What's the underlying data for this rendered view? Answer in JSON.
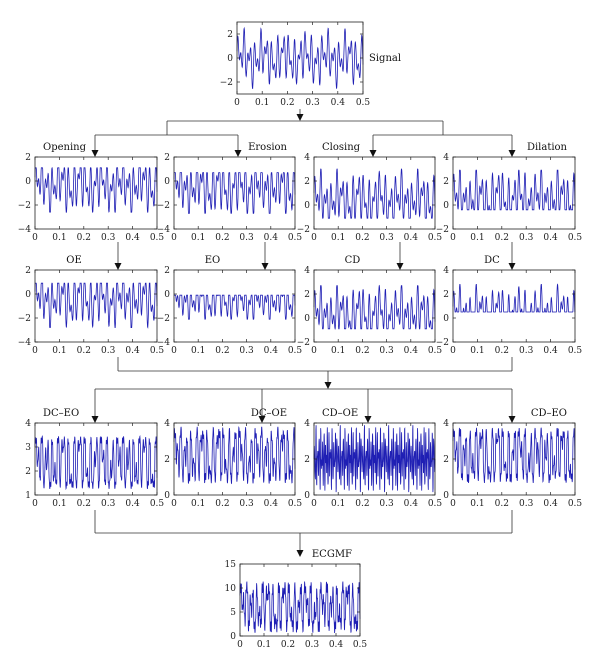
{
  "chart_data": [
    {
      "id": "signal",
      "type": "line",
      "title": "Signal",
      "ylim": [
        -3,
        3
      ],
      "xlim": [
        0,
        0.5
      ],
      "yticks": [
        "2",
        "0",
        "−2"
      ],
      "xticks": [
        "0",
        "0.1",
        "0.2",
        "0.3",
        "0.4",
        "0.5"
      ]
    },
    {
      "id": "opening",
      "type": "line",
      "title": "Opening",
      "ylim": [
        -4,
        2
      ],
      "xlim": [
        0,
        0.5
      ],
      "yticks": [
        "2",
        "0",
        "−2",
        "−4"
      ],
      "xticks": [
        "0",
        "0.1",
        "0.2",
        "0.3",
        "0.4",
        "0.5"
      ]
    },
    {
      "id": "erosion",
      "type": "line",
      "title": "Erosion",
      "ylim": [
        -4,
        2
      ],
      "xlim": [
        0,
        0.5
      ],
      "yticks": [
        "2",
        "0",
        "−2",
        "−4"
      ],
      "xticks": [
        "0",
        "0.1",
        "0.2",
        "0.3",
        "0.4",
        "0.5"
      ]
    },
    {
      "id": "closing",
      "type": "line",
      "title": "Closing",
      "ylim": [
        -2,
        4
      ],
      "xlim": [
        0,
        0.5
      ],
      "yticks": [
        "4",
        "2",
        "0",
        "−2"
      ],
      "xticks": [
        "0",
        "0.1",
        "0.2",
        "0.3",
        "0.4",
        "0.5"
      ]
    },
    {
      "id": "dilation",
      "type": "line",
      "title": "Dilation",
      "ylim": [
        -2,
        4
      ],
      "xlim": [
        0,
        0.5
      ],
      "yticks": [
        "4",
        "2",
        "0",
        "−2"
      ],
      "xticks": [
        "0",
        "0.1",
        "0.2",
        "0.3",
        "0.4",
        "0.5"
      ]
    },
    {
      "id": "oe",
      "type": "line",
      "title": "OE",
      "ylim": [
        -4,
        2
      ],
      "xlim": [
        0,
        0.5
      ],
      "yticks": [
        "2",
        "0",
        "−2",
        "−4"
      ],
      "xticks": [
        "0",
        "0.1",
        "0.2",
        "0.3",
        "0.4",
        "0.5"
      ]
    },
    {
      "id": "eo",
      "type": "line",
      "title": "EO",
      "ylim": [
        -4,
        2
      ],
      "xlim": [
        0,
        0.5
      ],
      "yticks": [
        "2",
        "0",
        "−2",
        "−4"
      ],
      "xticks": [
        "0",
        "0.1",
        "0.2",
        "0.3",
        "0.4",
        "0.5"
      ]
    },
    {
      "id": "cd",
      "type": "line",
      "title": "CD",
      "ylim": [
        -2,
        4
      ],
      "xlim": [
        0,
        0.5
      ],
      "yticks": [
        "4",
        "2",
        "0",
        "−2"
      ],
      "xticks": [
        "0",
        "0.1",
        "0.2",
        "0.3",
        "0.4",
        "0.5"
      ]
    },
    {
      "id": "dc",
      "type": "line",
      "title": "DC",
      "ylim": [
        -2,
        4
      ],
      "xlim": [
        0,
        0.5
      ],
      "yticks": [
        "4",
        "2",
        "0",
        "−2"
      ],
      "xticks": [
        "0",
        "0.1",
        "0.2",
        "0.3",
        "0.4",
        "0.5"
      ]
    },
    {
      "id": "dc_eo",
      "type": "line",
      "title": "DC–EO",
      "ylim": [
        1,
        4
      ],
      "xlim": [
        0,
        0.5
      ],
      "yticks": [
        "4",
        "3",
        "2",
        "1"
      ],
      "xticks": [
        "0",
        "0.1",
        "0.2",
        "0.3",
        "0.4",
        "0.5"
      ]
    },
    {
      "id": "dc_oe",
      "type": "line",
      "title": "DC–OE",
      "ylim": [
        0,
        4
      ],
      "xlim": [
        0,
        0.5
      ],
      "yticks": [
        "4",
        "2",
        "0"
      ],
      "xticks": [
        "0",
        "0.1",
        "0.2",
        "0.3",
        "0.4",
        "0.5"
      ]
    },
    {
      "id": "cd_oe",
      "type": "line",
      "title": "CD–OE",
      "ylim": [
        0,
        4
      ],
      "xlim": [
        0,
        0.5
      ],
      "yticks": [
        "4",
        "2",
        "0"
      ],
      "xticks": [
        "0",
        "0.1",
        "0.2",
        "0.3",
        "0.4",
        "0.5"
      ]
    },
    {
      "id": "cd_eo",
      "type": "line",
      "title": "CD–EO",
      "ylim": [
        0,
        4
      ],
      "xlim": [
        0,
        0.5
      ],
      "yticks": [
        "4",
        "2",
        "0"
      ],
      "xticks": [
        "0",
        "0.1",
        "0.2",
        "0.3",
        "0.4",
        "0.5"
      ]
    },
    {
      "id": "ecgmf",
      "type": "line",
      "title": "ECGMF",
      "ylim": [
        0,
        15
      ],
      "xlim": [
        0,
        0.5
      ],
      "yticks": [
        "15",
        "10",
        "5",
        "0"
      ],
      "xticks": [
        "0",
        "0.1",
        "0.2",
        "0.3",
        "0.4",
        "0.5"
      ]
    }
  ],
  "colors": {
    "wave": "#1f1fb4",
    "axis": "#222222"
  }
}
